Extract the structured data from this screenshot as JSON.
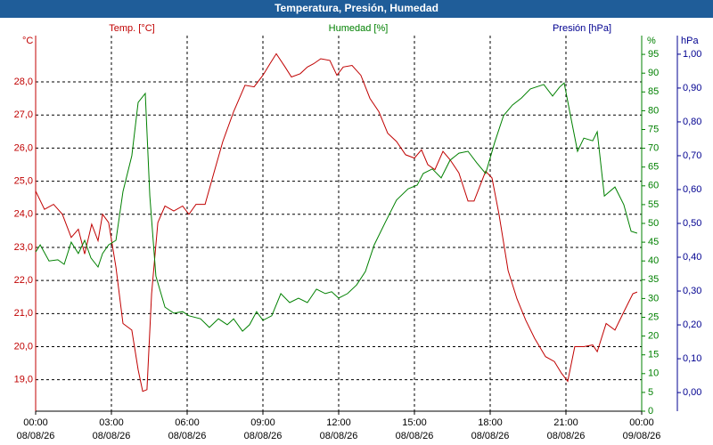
{
  "chart_data": {
    "type": "line",
    "title": "Temperatura, Presión, Humedad",
    "y_label": "Temp. [°C]",
    "y_unit": "°C",
    "y2_label": "Humedad [%]",
    "y2_unit": "%",
    "y3_label": "Presión [hPa]",
    "y3_unit": "hPa",
    "xlim": [
      0,
      24
    ],
    "xticks": [
      {
        "value": 0,
        "label": "00:00"
      },
      {
        "value": 3,
        "label": "03:00"
      },
      {
        "value": 6,
        "label": "06:00"
      },
      {
        "value": 9,
        "label": "09:00"
      },
      {
        "value": 12,
        "label": "12:00"
      },
      {
        "value": 15,
        "label": "15:00"
      },
      {
        "value": 18,
        "label": "18:00"
      },
      {
        "value": 21,
        "label": "21:00"
      },
      {
        "value": 24,
        "label": "00:00"
      }
    ],
    "xtick_dates": [
      "08/08/26",
      "08/08/26",
      "08/08/26",
      "08/08/26",
      "08/08/26",
      "08/08/26",
      "08/08/26",
      "08/08/26",
      "09/08/26"
    ],
    "ylim": [
      18.05,
      29.4
    ],
    "yticks": [
      {
        "value": 19,
        "label": "19,0"
      },
      {
        "value": 20,
        "label": "20,0"
      },
      {
        "value": 21,
        "label": "21,0"
      },
      {
        "value": 22,
        "label": "22,0"
      },
      {
        "value": 23,
        "label": "23,0"
      },
      {
        "value": 24,
        "label": "24,0"
      },
      {
        "value": 25,
        "label": "25,0"
      },
      {
        "value": 26,
        "label": "26,0"
      },
      {
        "value": 27,
        "label": "27,0"
      },
      {
        "value": 28,
        "label": "28,0"
      }
    ],
    "y2lim": [
      0,
      100
    ],
    "y2ticks": [
      0,
      5,
      10,
      15,
      20,
      25,
      30,
      35,
      40,
      45,
      50,
      55,
      60,
      65,
      70,
      75,
      80,
      85,
      90,
      95
    ],
    "y3lim": [
      -0.055,
      1.055
    ],
    "y3ticks": [
      {
        "value": 0,
        "label": "0,00"
      },
      {
        "value": 0.1,
        "label": "0,10"
      },
      {
        "value": 0.2,
        "label": "0,20"
      },
      {
        "value": 0.3,
        "label": "0,30"
      },
      {
        "value": 0.4,
        "label": "0,40"
      },
      {
        "value": 0.5,
        "label": "0,50"
      },
      {
        "value": 0.6,
        "label": "0,60"
      },
      {
        "value": 0.7,
        "label": "0,70"
      },
      {
        "value": 0.8,
        "label": "0,80"
      },
      {
        "value": 0.9,
        "label": "0,90"
      },
      {
        "value": 1,
        "label": "1,00"
      }
    ],
    "grid": true,
    "y_color": "#c00000",
    "y2_color": "#008000",
    "y3_color": "#000090",
    "series": [
      {
        "name": "Temp. [°C]",
        "color": "#c00000",
        "axis": "y",
        "x": [
          0,
          0.35,
          0.71,
          1.06,
          1.41,
          1.69,
          1.94,
          2.22,
          2.47,
          2.65,
          2.89,
          3.18,
          3.46,
          3.81,
          4.06,
          4.24,
          4.41,
          4.59,
          4.84,
          5.12,
          5.47,
          5.82,
          6.07,
          6.35,
          6.71,
          7.06,
          7.41,
          7.84,
          8.29,
          8.65,
          9,
          9.28,
          9.53,
          9.88,
          10.13,
          10.48,
          10.76,
          11.01,
          11.29,
          11.65,
          11.93,
          12.18,
          12.53,
          12.88,
          13.24,
          13.59,
          13.94,
          14.29,
          14.65,
          15,
          15.28,
          15.53,
          15.81,
          16.13,
          16.41,
          16.76,
          17.12,
          17.36,
          17.82,
          18.07,
          18.35,
          18.71,
          19.06,
          19.41,
          19.76,
          20.19,
          20.54,
          20.82,
          21.07,
          21.35,
          21.71,
          22.06,
          22.24,
          22.59,
          22.94,
          23.29,
          23.65,
          23.82
        ],
        "values": [
          24.7,
          24.15,
          24.3,
          24.0,
          23.3,
          23.55,
          22.8,
          23.7,
          23.2,
          24.0,
          23.75,
          22.4,
          20.7,
          20.5,
          19.3,
          18.65,
          18.7,
          21.6,
          23.75,
          24.25,
          24.1,
          24.25,
          24.0,
          24.3,
          24.3,
          25.25,
          26.2,
          27.1,
          27.9,
          27.85,
          28.2,
          28.55,
          28.85,
          28.45,
          28.15,
          28.25,
          28.45,
          28.55,
          28.7,
          28.65,
          28.2,
          28.45,
          28.5,
          28.2,
          27.5,
          27.1,
          26.45,
          26.2,
          25.8,
          25.7,
          25.95,
          25.5,
          25.35,
          25.9,
          25.65,
          25.25,
          24.4,
          24.4,
          25.3,
          25.1,
          24.0,
          22.3,
          21.45,
          20.8,
          20.25,
          19.7,
          19.55,
          19.2,
          18.95,
          20.0,
          20.0,
          20.05,
          19.85,
          20.7,
          20.5,
          21.05,
          21.6,
          21.65
        ]
      },
      {
        "name": "Humedad [%]",
        "color": "#008000",
        "axis": "y2",
        "x": [
          0,
          0.18,
          0.53,
          0.88,
          1.13,
          1.41,
          1.69,
          1.94,
          2.19,
          2.47,
          2.65,
          2.89,
          3.18,
          3.46,
          3.81,
          4.06,
          4.34,
          4.52,
          4.76,
          5.12,
          5.47,
          5.82,
          6.07,
          6.53,
          6.88,
          7.24,
          7.59,
          7.84,
          8.19,
          8.47,
          8.75,
          9,
          9.35,
          9.71,
          10.06,
          10.41,
          10.76,
          11.12,
          11.47,
          11.72,
          12,
          12.35,
          12.71,
          13.06,
          13.41,
          13.84,
          14.29,
          14.75,
          15.11,
          15.35,
          15.71,
          16.06,
          16.41,
          16.76,
          17.12,
          17.47,
          17.82,
          18.18,
          18.53,
          18.88,
          19.24,
          19.59,
          20.12,
          20.47,
          20.75,
          20.93,
          21.18,
          21.46,
          21.71,
          22.06,
          22.24,
          22.52,
          22.94,
          23.29,
          23.58,
          23.82
        ],
        "values": [
          42.4,
          44.3,
          40,
          40.3,
          39.1,
          45,
          42,
          45.5,
          40.8,
          38.4,
          42,
          44.3,
          45.5,
          58.5,
          68,
          82.2,
          84.6,
          57.3,
          36,
          27.7,
          26.1,
          26.5,
          25.4,
          24.6,
          22.3,
          24.6,
          23,
          24.6,
          21.3,
          23,
          26.5,
          24.2,
          25.4,
          31.3,
          28.9,
          30.1,
          28.9,
          32.5,
          31.3,
          31.8,
          30.1,
          31.3,
          33.6,
          37.2,
          44.3,
          50.2,
          56.2,
          59.2,
          60.2,
          63.3,
          64.5,
          62.1,
          66.8,
          68.7,
          69.2,
          66.1,
          63.3,
          71.6,
          78.7,
          81.5,
          83.4,
          85.8,
          87,
          83.9,
          86.3,
          87.4,
          78.7,
          69.2,
          72.7,
          72,
          74.4,
          57.3,
          59.7,
          55,
          47.9,
          47.4
        ]
      }
    ]
  }
}
